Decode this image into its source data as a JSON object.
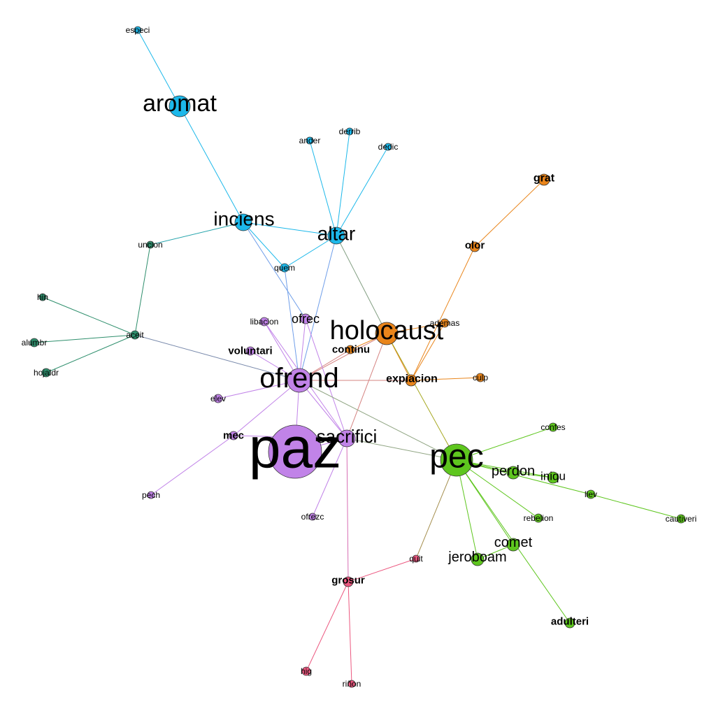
{
  "colors": {
    "cyan": "#1cb8ea",
    "purple": "#c183e8",
    "orange": "#e9851b",
    "green": "#5ec61e",
    "teal": "#2f8f6d",
    "pink": "#ec5880"
  },
  "nodes": [
    {
      "id": "especi",
      "label": "especi",
      "group": "cyan"
    },
    {
      "id": "aromat",
      "label": "aromat",
      "group": "cyan"
    },
    {
      "id": "inciens",
      "label": "inciens",
      "group": "cyan"
    },
    {
      "id": "altar",
      "label": "altar",
      "group": "cyan"
    },
    {
      "id": "ander",
      "label": "ander",
      "group": "cyan"
    },
    {
      "id": "derrib",
      "label": "derrib",
      "group": "cyan"
    },
    {
      "id": "dedic",
      "label": "dedic",
      "group": "cyan"
    },
    {
      "id": "quem",
      "label": "quem",
      "group": "cyan"
    },
    {
      "id": "uncion",
      "label": "uncion",
      "group": "teal"
    },
    {
      "id": "hin",
      "label": "hin",
      "group": "teal"
    },
    {
      "id": "aceit",
      "label": "aceit",
      "group": "teal"
    },
    {
      "id": "alumbr",
      "label": "alumbr",
      "group": "teal"
    },
    {
      "id": "hojaldr",
      "label": "hojaldr",
      "group": "teal"
    },
    {
      "id": "grat",
      "label": "grat",
      "group": "orange"
    },
    {
      "id": "olor",
      "label": "olor",
      "group": "orange"
    },
    {
      "id": "holocaust",
      "label": "holocaust",
      "group": "orange"
    },
    {
      "id": "ademas",
      "label": "ademas",
      "group": "orange"
    },
    {
      "id": "continu",
      "label": "continu",
      "group": "orange"
    },
    {
      "id": "expiacion",
      "label": "expiacion",
      "group": "orange"
    },
    {
      "id": "culp",
      "label": "culp",
      "group": "orange"
    },
    {
      "id": "libacion",
      "label": "libacion",
      "group": "purple"
    },
    {
      "id": "ofrec",
      "label": "ofrec",
      "group": "purple"
    },
    {
      "id": "voluntari",
      "label": "voluntari",
      "group": "purple"
    },
    {
      "id": "ofrend",
      "label": "ofrend",
      "group": "purple"
    },
    {
      "id": "elev",
      "label": "elev",
      "group": "purple"
    },
    {
      "id": "mec",
      "label": "mec",
      "group": "purple"
    },
    {
      "id": "paz",
      "label": "paz",
      "group": "purple"
    },
    {
      "id": "sacrifici",
      "label": "sacrifici",
      "group": "purple"
    },
    {
      "id": "pech",
      "label": "pech",
      "group": "purple"
    },
    {
      "id": "ofrezc",
      "label": "ofrezc",
      "group": "purple"
    },
    {
      "id": "pec",
      "label": "pec",
      "group": "green"
    },
    {
      "id": "confes",
      "label": "confes",
      "group": "green"
    },
    {
      "id": "perdon",
      "label": "perdon",
      "group": "green"
    },
    {
      "id": "iniqu",
      "label": "iniqu",
      "group": "green"
    },
    {
      "id": "llev",
      "label": "llev",
      "group": "green"
    },
    {
      "id": "cautiveri",
      "label": "cautiveri",
      "group": "green"
    },
    {
      "id": "rebelion",
      "label": "rebelion",
      "group": "green"
    },
    {
      "id": "comet",
      "label": "comet",
      "group": "green"
    },
    {
      "id": "jeroboam",
      "label": "jeroboam",
      "group": "green"
    },
    {
      "id": "adulteri",
      "label": "adulteri",
      "group": "green"
    },
    {
      "id": "quit",
      "label": "quit",
      "group": "pink"
    },
    {
      "id": "grosur",
      "label": "grosur",
      "group": "pink"
    },
    {
      "id": "hig",
      "label": "hig",
      "group": "pink"
    },
    {
      "id": "rinon",
      "label": "riñon",
      "group": "pink"
    }
  ],
  "edges": [
    [
      "especi",
      "aromat"
    ],
    [
      "aromat",
      "inciens"
    ],
    [
      "inciens",
      "altar"
    ],
    [
      "inciens",
      "uncion"
    ],
    [
      "inciens",
      "quem"
    ],
    [
      "inciens",
      "ofrec"
    ],
    [
      "altar",
      "ander"
    ],
    [
      "altar",
      "derrib"
    ],
    [
      "altar",
      "dedic"
    ],
    [
      "altar",
      "quem"
    ],
    [
      "altar",
      "ofrend"
    ],
    [
      "altar",
      "holocaust"
    ],
    [
      "quem",
      "ofrend"
    ],
    [
      "uncion",
      "aceit"
    ],
    [
      "aceit",
      "hin"
    ],
    [
      "aceit",
      "alumbr"
    ],
    [
      "aceit",
      "hojaldr"
    ],
    [
      "aceit",
      "ofrend"
    ],
    [
      "grat",
      "olor"
    ],
    [
      "olor",
      "expiacion"
    ],
    [
      "holocaust",
      "ademas"
    ],
    [
      "holocaust",
      "continu"
    ],
    [
      "holocaust",
      "expiacion"
    ],
    [
      "holocaust",
      "ofrend"
    ],
    [
      "holocaust",
      "sacrifici"
    ],
    [
      "holocaust",
      "pec"
    ],
    [
      "ademas",
      "expiacion"
    ],
    [
      "expiacion",
      "culp"
    ],
    [
      "expiacion",
      "ofrend"
    ],
    [
      "continu",
      "ofrend"
    ],
    [
      "libacion",
      "ofrend"
    ],
    [
      "ofrec",
      "ofrend"
    ],
    [
      "ofrec",
      "sacrifici"
    ],
    [
      "voluntari",
      "ofrend"
    ],
    [
      "ofrend",
      "elev"
    ],
    [
      "ofrend",
      "mec"
    ],
    [
      "ofrend",
      "paz"
    ],
    [
      "ofrend",
      "sacrifici"
    ],
    [
      "ofrend",
      "pec"
    ],
    [
      "libacion",
      "sacrifici"
    ],
    [
      "mec",
      "pech"
    ],
    [
      "mec",
      "sacrifici"
    ],
    [
      "paz",
      "sacrifici"
    ],
    [
      "sacrifici",
      "ofrezc"
    ],
    [
      "sacrifici",
      "grosur"
    ],
    [
      "sacrifici",
      "pec"
    ],
    [
      "pec",
      "confes"
    ],
    [
      "pec",
      "perdon"
    ],
    [
      "pec",
      "iniqu"
    ],
    [
      "pec",
      "llev"
    ],
    [
      "pec",
      "rebelion"
    ],
    [
      "pec",
      "comet"
    ],
    [
      "pec",
      "jeroboam"
    ],
    [
      "pec",
      "adulteri"
    ],
    [
      "pec",
      "quit"
    ],
    [
      "perdon",
      "iniqu"
    ],
    [
      "llev",
      "cautiveri"
    ],
    [
      "comet",
      "jeroboam"
    ],
    [
      "quit",
      "grosur"
    ],
    [
      "grosur",
      "hig"
    ],
    [
      "grosur",
      "rinon"
    ]
  ]
}
